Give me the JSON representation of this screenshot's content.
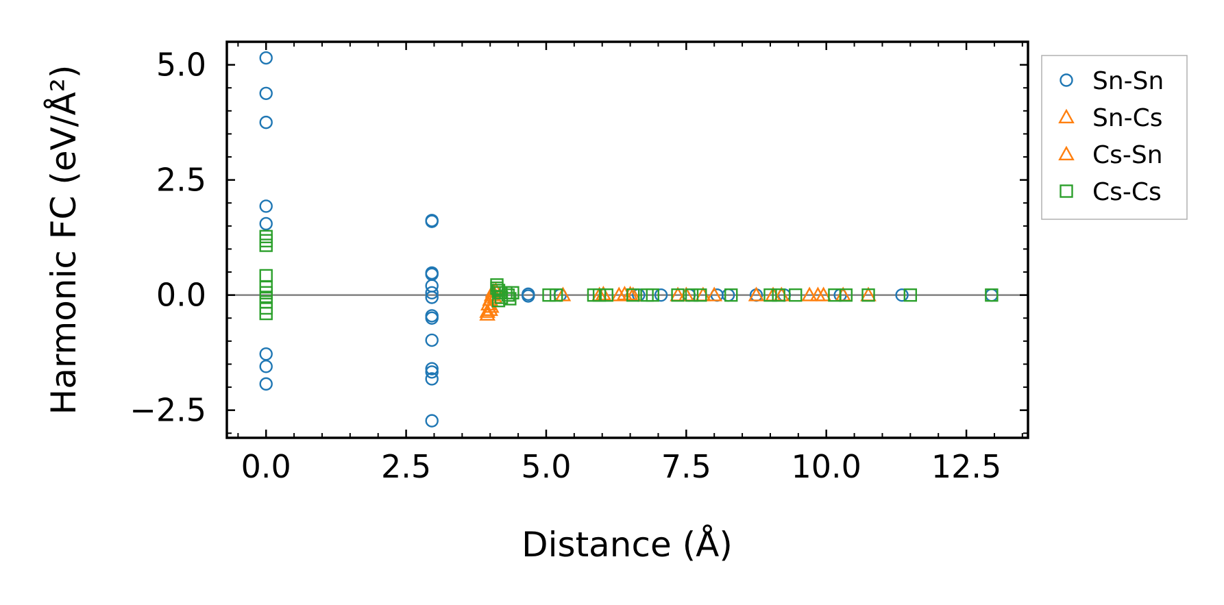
{
  "chart_data": {
    "type": "scatter",
    "title": "",
    "xlabel": "Distance (Å)",
    "ylabel": "Harmonic FC (eV/Å²)",
    "xlim": [
      -0.7,
      13.6
    ],
    "ylim": [
      -3.1,
      5.5
    ],
    "x_ticks": [
      0.0,
      2.5,
      5.0,
      7.5,
      10.0,
      12.5
    ],
    "x_tick_labels": [
      "0.0",
      "2.5",
      "5.0",
      "7.5",
      "10.0",
      "12.5"
    ],
    "y_ticks": [
      -2.5,
      0.0,
      2.5,
      5.0
    ],
    "y_tick_labels": [
      "−2.5",
      "0.0",
      "2.5",
      "5.0"
    ],
    "zero_line": 0.0,
    "legend_position": "outside-right",
    "series": [
      {
        "name": "Sn-Sn",
        "marker": "circle",
        "color": "#1f77b4",
        "points": [
          [
            0,
            5.15
          ],
          [
            0,
            4.38
          ],
          [
            0,
            3.75
          ],
          [
            0,
            1.93
          ],
          [
            0,
            1.55
          ],
          [
            0,
            -1.28
          ],
          [
            0,
            -1.55
          ],
          [
            0,
            -1.93
          ],
          [
            2.96,
            1.62
          ],
          [
            2.96,
            1.6
          ],
          [
            2.96,
            0.48
          ],
          [
            2.96,
            0.45
          ],
          [
            2.96,
            0.2
          ],
          [
            2.96,
            0.05
          ],
          [
            2.96,
            -0.05
          ],
          [
            2.96,
            -0.45
          ],
          [
            2.96,
            -0.5
          ],
          [
            2.96,
            -0.98
          ],
          [
            2.96,
            -1.6
          ],
          [
            2.96,
            -1.67
          ],
          [
            2.96,
            -1.82
          ],
          [
            2.96,
            -2.73
          ],
          [
            4.68,
            0.02
          ],
          [
            4.68,
            -0.02
          ],
          [
            5.25,
            0.0
          ],
          [
            6.65,
            0.0
          ],
          [
            7.05,
            0.0
          ],
          [
            7.55,
            0.0
          ],
          [
            8.05,
            0.0
          ],
          [
            8.25,
            0.0
          ],
          [
            8.75,
            0.0
          ],
          [
            9.25,
            0.0
          ],
          [
            10.25,
            0.0
          ],
          [
            11.35,
            0.0
          ],
          [
            12.95,
            0.0
          ]
        ]
      },
      {
        "name": "Sn-Cs",
        "marker": "triangle",
        "color": "#ff7f0e",
        "points": [
          [
            3.95,
            -0.42
          ],
          [
            4.0,
            -0.32
          ],
          [
            3.97,
            -0.2
          ],
          [
            4.0,
            -0.1
          ],
          [
            4.03,
            0.0
          ],
          [
            4.05,
            0.08
          ],
          [
            6.02,
            0.02
          ],
          [
            6.3,
            0.0
          ],
          [
            6.5,
            0.02
          ],
          [
            7.35,
            0.0
          ],
          [
            7.8,
            0.0
          ],
          [
            8.75,
            0.0
          ],
          [
            9.2,
            0.0
          ],
          [
            9.85,
            0.0
          ],
          [
            10.75,
            0.0
          ]
        ]
      },
      {
        "name": "Cs-Sn",
        "marker": "triangle",
        "color": "#ff7f0e",
        "points": [
          [
            3.95,
            -0.36
          ],
          [
            4.02,
            -0.25
          ],
          [
            4.08,
            -0.05
          ],
          [
            4.1,
            0.1
          ],
          [
            5.3,
            0.0
          ],
          [
            5.95,
            0.0
          ],
          [
            6.4,
            0.02
          ],
          [
            6.55,
            0.0
          ],
          [
            7.5,
            0.0
          ],
          [
            8.0,
            0.0
          ],
          [
            9.05,
            0.0
          ],
          [
            9.7,
            0.0
          ],
          [
            9.95,
            0.0
          ],
          [
            10.3,
            0.0
          ]
        ]
      },
      {
        "name": "Cs-Cs",
        "marker": "square",
        "color": "#2ca02c",
        "points": [
          [
            0,
            1.27
          ],
          [
            0,
            1.18
          ],
          [
            0,
            1.08
          ],
          [
            0,
            0.42
          ],
          [
            0,
            0.18
          ],
          [
            0,
            0.05
          ],
          [
            0,
            -0.05
          ],
          [
            0,
            -0.15
          ],
          [
            0,
            -0.28
          ],
          [
            0,
            -0.4
          ],
          [
            4.12,
            0.22
          ],
          [
            4.12,
            0.15
          ],
          [
            4.15,
            0.1
          ],
          [
            4.18,
            0.05
          ],
          [
            4.2,
            -0.05
          ],
          [
            4.15,
            -0.12
          ],
          [
            4.28,
            0.05
          ],
          [
            4.32,
            0.0
          ],
          [
            4.35,
            -0.08
          ],
          [
            4.4,
            0.05
          ],
          [
            5.05,
            0.0
          ],
          [
            5.18,
            0.0
          ],
          [
            5.85,
            0.0
          ],
          [
            5.95,
            0.0
          ],
          [
            6.08,
            0.0
          ],
          [
            6.55,
            0.0
          ],
          [
            6.8,
            0.0
          ],
          [
            6.9,
            0.0
          ],
          [
            7.35,
            0.0
          ],
          [
            7.6,
            0.0
          ],
          [
            7.75,
            0.0
          ],
          [
            8.3,
            0.0
          ],
          [
            9.0,
            0.0
          ],
          [
            9.15,
            0.0
          ],
          [
            9.45,
            0.0
          ],
          [
            10.15,
            0.0
          ],
          [
            10.35,
            0.0
          ],
          [
            10.75,
            0.0
          ],
          [
            11.5,
            0.0
          ],
          [
            12.95,
            0.0
          ]
        ]
      }
    ]
  }
}
